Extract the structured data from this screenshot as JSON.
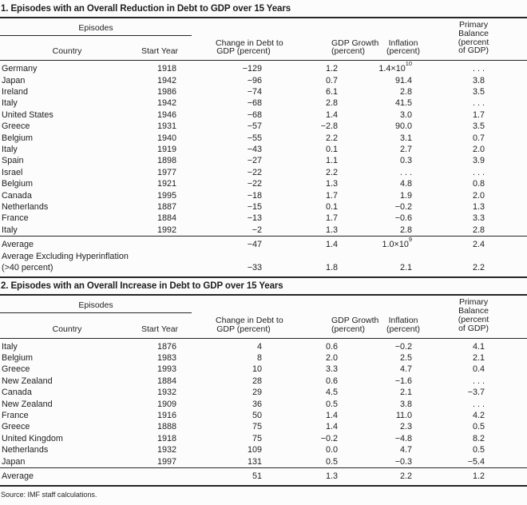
{
  "colors": {
    "text": "#1e1e1e",
    "rule": "#262626",
    "background": "#fcfcfc"
  },
  "source_note": "Source: IMF staff calculations.",
  "tables": [
    {
      "title": "1. Episodes with an Overall Reduction in Debt to GDP over 15 Years",
      "group_label": "Episodes",
      "column_headers": [
        [
          "Country"
        ],
        [
          "Start Year"
        ],
        [
          "Change in Debt to",
          "GDP (percent)"
        ],
        [
          "GDP Growth",
          "(percent)"
        ],
        [
          "Inflation",
          "(percent)"
        ],
        [
          "Primary",
          "Balance",
          "(percent",
          "of GDP)"
        ]
      ],
      "rows": [
        [
          "Germany",
          "1918",
          "−129",
          "1.2",
          "1.4×10^10",
          ". . ."
        ],
        [
          "Japan",
          "1942",
          "−96",
          "0.7",
          "91.4",
          "3.8"
        ],
        [
          "Ireland",
          "1986",
          "−74",
          "6.1",
          "2.8",
          "3.5"
        ],
        [
          "Italy",
          "1942",
          "−68",
          "2.8",
          "41.5",
          ". . ."
        ],
        [
          "United States",
          "1946",
          "−68",
          "1.4",
          "3.0",
          "1.7"
        ],
        [
          "Greece",
          "1931",
          "−57",
          "−2.8",
          "90.0",
          "3.5"
        ],
        [
          "Belgium",
          "1940",
          "−55",
          "2.2",
          "3.1",
          "0.7"
        ],
        [
          "Italy",
          "1919",
          "−43",
          "0.1",
          "2.7",
          "2.0"
        ],
        [
          "Spain",
          "1898",
          "−27",
          "1.1",
          "0.3",
          "3.9"
        ],
        [
          "Israel",
          "1977",
          "−22",
          "2.2",
          ". . .",
          ". . ."
        ],
        [
          "Belgium",
          "1921",
          "−22",
          "1.3",
          "4.8",
          "0.8"
        ],
        [
          "Canada",
          "1995",
          "−18",
          "1.7",
          "1.9",
          "2.0"
        ],
        [
          "Netherlands",
          "1887",
          "−15",
          "0.1",
          "−0.2",
          "1.3"
        ],
        [
          "France",
          "1884",
          "−13",
          "1.7",
          "−0.6",
          "3.3"
        ],
        [
          "Italy",
          "1992",
          "−2",
          "1.3",
          "2.8",
          "2.8"
        ]
      ],
      "footer_rows": [
        [
          "Average",
          "−47",
          "1.4",
          "1.0×10^9",
          "2.4"
        ],
        [
          "Average Excluding Hyperinflation",
          "",
          "",
          "",
          ""
        ],
        [
          "(>40 percent)",
          "−33",
          "1.8",
          "2.1",
          "2.2"
        ]
      ]
    },
    {
      "title": "2. Episodes with an Overall Increase in Debt to GDP over 15 Years",
      "group_label": "Episodes",
      "column_headers": [
        [
          "Country"
        ],
        [
          "Start Year"
        ],
        [
          "Change in Debt to",
          "GDP (percent)"
        ],
        [
          "GDP Growth",
          "(percent)"
        ],
        [
          "Inflation",
          "(percent)"
        ],
        [
          "Primary",
          "Balance",
          "(percent",
          "of GDP)"
        ]
      ],
      "rows": [
        [
          "Italy",
          "1876",
          "4",
          "0.6",
          "−0.2",
          "4.1"
        ],
        [
          "Belgium",
          "1983",
          "8",
          "2.0",
          "2.5",
          "2.1"
        ],
        [
          "Greece",
          "1993",
          "10",
          "3.3",
          "4.7",
          "0.4"
        ],
        [
          "New Zealand",
          "1884",
          "28",
          "0.6",
          "−1.6",
          ". . ."
        ],
        [
          "Canada",
          "1932",
          "29",
          "4.5",
          "2.1",
          "−3.7"
        ],
        [
          "New Zealand",
          "1909",
          "36",
          "0.5",
          "3.8",
          ". . ."
        ],
        [
          "France",
          "1916",
          "50",
          "1.4",
          "11.0",
          "4.2"
        ],
        [
          "Greece",
          "1888",
          "75",
          "1.4",
          "2.3",
          "0.5"
        ],
        [
          "United Kingdom",
          "1918",
          "75",
          "−0.2",
          "−4.8",
          "8.2"
        ],
        [
          "Netherlands",
          "1932",
          "109",
          "0.0",
          "4.7",
          "0.5"
        ],
        [
          "Japan",
          "1997",
          "131",
          "0.5",
          "−0.3",
          "−5.4"
        ]
      ],
      "footer_rows": [
        [
          "Average",
          "51",
          "1.3",
          "2.2",
          "1.2"
        ]
      ]
    }
  ]
}
